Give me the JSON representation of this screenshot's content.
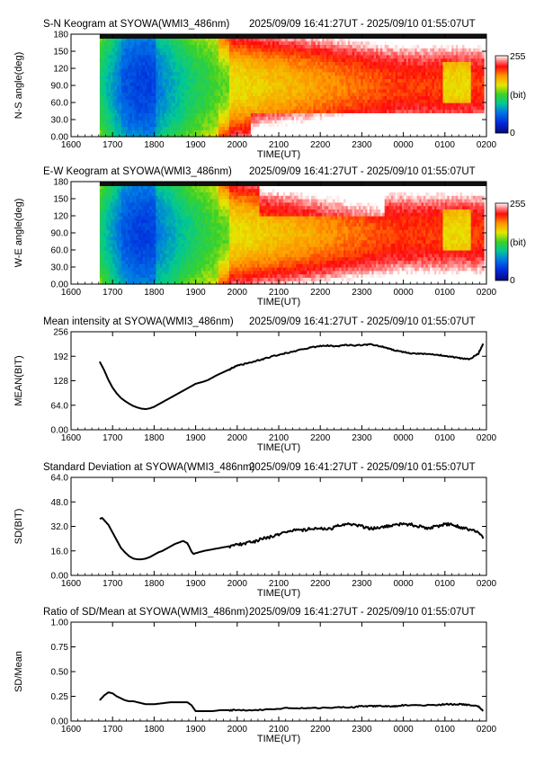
{
  "panels": [
    {
      "type": "heatmap",
      "title": "S-N Keogram at SYOWA(WMI3_486nm)",
      "time_range": "2025/09/09 16:41:27UT - 2025/09/10 01:55:07UT",
      "xlabel": "TIME(UT)",
      "ylabel": "N-S angle(deg)",
      "x_ticks": [
        "1600",
        "1700",
        "1800",
        "1900",
        "2000",
        "2100",
        "2200",
        "2300",
        "0000",
        "0100",
        "0200"
      ],
      "y_ticks": [
        "0.00",
        "30.0",
        "60.0",
        "90.0",
        "120",
        "150",
        "180"
      ],
      "ylim": [
        0,
        180
      ],
      "colorbar": {
        "max_label": "255",
        "unit_label": "(bit)",
        "min_label": "0"
      }
    },
    {
      "type": "heatmap",
      "title": "E-W Keogram at SYOWA(WMI3_486nm)",
      "time_range": "2025/09/09 16:41:27UT - 2025/09/10 01:55:07UT",
      "xlabel": "TIME(UT)",
      "ylabel": "W-E angle(deg)",
      "x_ticks": [
        "1600",
        "1700",
        "1800",
        "1900",
        "2000",
        "2100",
        "2200",
        "2300",
        "0000",
        "0100",
        "0200"
      ],
      "y_ticks": [
        "0.00",
        "30.0",
        "60.0",
        "90.0",
        "120",
        "150",
        "180"
      ],
      "ylim": [
        0,
        180
      ],
      "colorbar": {
        "max_label": "255",
        "unit_label": "(bit)",
        "min_label": "0"
      }
    },
    {
      "type": "line",
      "title": "Mean intensity at SYOWA(WMI3_486nm)",
      "time_range": "2025/09/09 16:41:27UT - 2025/09/10 01:55:07UT",
      "xlabel": "TIME(UT)",
      "ylabel": "MEAN(BIT)",
      "x_ticks": [
        "1600",
        "1700",
        "1800",
        "1900",
        "2000",
        "2100",
        "2200",
        "2300",
        "0000",
        "0100",
        "0200"
      ],
      "y_ticks": [
        "0.00",
        "64.0",
        "128",
        "192",
        "256"
      ],
      "ylim": [
        0,
        256
      ]
    },
    {
      "type": "line",
      "title": "Standard Deviation at SYOWA(WMI3_486nm)",
      "time_range": "2025/09/09 16:41:27UT - 2025/09/10 01:55:07UT",
      "xlabel": "TIME(UT)",
      "ylabel": "SD(BIT)",
      "x_ticks": [
        "1600",
        "1700",
        "1800",
        "1900",
        "2000",
        "2100",
        "2200",
        "2300",
        "0000",
        "0100",
        "0200"
      ],
      "y_ticks": [
        "0.00",
        "16.0",
        "32.0",
        "48.0",
        "64.0"
      ],
      "ylim": [
        0,
        64
      ]
    },
    {
      "type": "line",
      "title": "Ratio of SD/Mean at SYOWA(WMI3_486nm)",
      "time_range": "2025/09/09 16:41:27UT - 2025/09/10 01:55:07UT",
      "xlabel": "TIME(UT)",
      "ylabel": "SD/Mean",
      "x_ticks": [
        "1600",
        "1700",
        "1800",
        "1900",
        "2000",
        "2100",
        "2200",
        "2300",
        "0000",
        "0100",
        "0200"
      ],
      "y_ticks": [
        "0.00",
        "0.25",
        "0.50",
        "0.75",
        "1.00"
      ],
      "ylim": [
        0,
        1
      ]
    }
  ],
  "chart_data": [
    {
      "type": "heatmap",
      "title": "S-N Keogram at SYOWA(WMI3_486nm)",
      "x": "time (UT hours, 16:41 to 01:55)",
      "y": "N-S angle (deg)",
      "ylim": [
        0,
        180
      ],
      "value_range": [
        0,
        255
      ],
      "colormap": "rainbow (blue-green-yellow-red-white)"
    },
    {
      "type": "heatmap",
      "title": "E-W Keogram at SYOWA(WMI3_486nm)",
      "x": "time (UT hours, 16:41 to 01:55)",
      "y": "W-E angle (deg)",
      "ylim": [
        0,
        180
      ],
      "value_range": [
        0,
        255
      ],
      "colormap": "rainbow (blue-green-yellow-red-white)"
    },
    {
      "type": "line",
      "title": "Mean intensity at SYOWA(WMI3_486nm)",
      "xlim": [
        16,
        26
      ],
      "ylim": [
        0,
        256
      ],
      "series": [
        {
          "x": [
            16.69,
            16.8,
            16.9,
            17.0,
            17.1,
            17.2,
            17.3,
            17.4,
            17.5,
            17.6,
            17.7,
            17.8,
            17.9,
            18.0,
            18.1,
            18.2,
            18.3,
            18.4,
            18.5,
            18.6,
            18.7,
            18.8,
            18.9,
            19.0,
            19.1,
            19.2,
            19.3,
            19.4,
            19.5,
            19.6,
            19.7,
            19.8,
            19.9,
            20.0,
            20.2,
            20.4,
            20.6,
            20.8,
            21.0,
            21.2,
            21.4,
            21.6,
            21.8,
            22.0,
            22.2,
            22.4,
            22.6,
            22.8,
            23.0,
            23.2,
            23.4,
            23.6,
            23.8,
            24.0,
            24.2,
            24.4,
            24.6,
            24.8,
            25.0,
            25.2,
            25.4,
            25.6,
            25.8,
            25.92
          ],
          "y": [
            178,
            155,
            130,
            110,
            95,
            83,
            75,
            68,
            62,
            58,
            55,
            54,
            56,
            60,
            66,
            72,
            78,
            84,
            90,
            96,
            102,
            108,
            114,
            120,
            123,
            126,
            130,
            136,
            142,
            147,
            152,
            157,
            162,
            167,
            172,
            178,
            184,
            190,
            196,
            201,
            206,
            211,
            215,
            219,
            220,
            218,
            222,
            220,
            221,
            223,
            219,
            214,
            207,
            203,
            200,
            198,
            199,
            196,
            193,
            190,
            186,
            185,
            198,
            225
          ]
        }
      ]
    },
    {
      "type": "line",
      "title": "Standard Deviation at SYOWA(WMI3_486nm)",
      "xlim": [
        16,
        26
      ],
      "ylim": [
        0,
        64
      ],
      "series": [
        {
          "x": [
            16.69,
            16.75,
            16.8,
            16.9,
            17.0,
            17.1,
            17.2,
            17.3,
            17.4,
            17.5,
            17.6,
            17.7,
            17.8,
            17.9,
            18.0,
            18.1,
            18.2,
            18.3,
            18.4,
            18.5,
            18.6,
            18.7,
            18.8,
            18.85,
            18.9,
            18.95,
            19.0,
            19.2,
            19.4,
            19.6,
            19.8,
            20.0,
            20.2,
            20.4,
            20.6,
            20.8,
            21.0,
            21.2,
            21.4,
            21.6,
            21.8,
            22.0,
            22.2,
            22.4,
            22.6,
            22.8,
            23.0,
            23.2,
            23.4,
            23.6,
            23.8,
            24.0,
            24.2,
            24.4,
            24.6,
            24.8,
            25.0,
            25.2,
            25.4,
            25.6,
            25.8,
            25.92
          ],
          "y": [
            37,
            37.5,
            36,
            33,
            28,
            23,
            18,
            15,
            12.5,
            11,
            10.5,
            10.5,
            11,
            12,
            13.5,
            15,
            16,
            17.5,
            19,
            20.5,
            21.5,
            22.5,
            21,
            18.5,
            15.5,
            14,
            14.5,
            16,
            17,
            18,
            19,
            20,
            21,
            22,
            24,
            25,
            27,
            28.5,
            30,
            29.5,
            31,
            30.5,
            30,
            32,
            33,
            33.5,
            32,
            30.5,
            31,
            32,
            33,
            33.5,
            33,
            32,
            31,
            32,
            33.5,
            33,
            31,
            30,
            28,
            24
          ]
        }
      ]
    },
    {
      "type": "line",
      "title": "Ratio of SD/Mean at SYOWA(WMI3_486nm)",
      "xlim": [
        16,
        26
      ],
      "ylim": [
        0,
        1
      ],
      "series": [
        {
          "x": [
            16.69,
            16.8,
            16.9,
            17.0,
            17.1,
            17.2,
            17.3,
            17.4,
            17.5,
            17.6,
            17.7,
            17.8,
            17.9,
            18.0,
            18.2,
            18.4,
            18.6,
            18.8,
            18.9,
            19.0,
            19.2,
            19.4,
            19.6,
            19.8,
            20.0,
            20.4,
            20.8,
            21.2,
            21.6,
            22.0,
            22.4,
            22.8,
            23.0,
            23.2,
            23.4,
            23.6,
            23.8,
            24.0,
            24.4,
            24.8,
            25.0,
            25.2,
            25.4,
            25.6,
            25.8,
            25.92
          ],
          "y": [
            0.21,
            0.26,
            0.29,
            0.28,
            0.25,
            0.23,
            0.21,
            0.2,
            0.2,
            0.19,
            0.18,
            0.17,
            0.17,
            0.17,
            0.18,
            0.19,
            0.19,
            0.19,
            0.16,
            0.1,
            0.1,
            0.1,
            0.11,
            0.11,
            0.11,
            0.11,
            0.12,
            0.13,
            0.13,
            0.13,
            0.14,
            0.14,
            0.15,
            0.15,
            0.15,
            0.15,
            0.15,
            0.16,
            0.16,
            0.16,
            0.17,
            0.17,
            0.17,
            0.16,
            0.15,
            0.1
          ]
        }
      ]
    }
  ]
}
